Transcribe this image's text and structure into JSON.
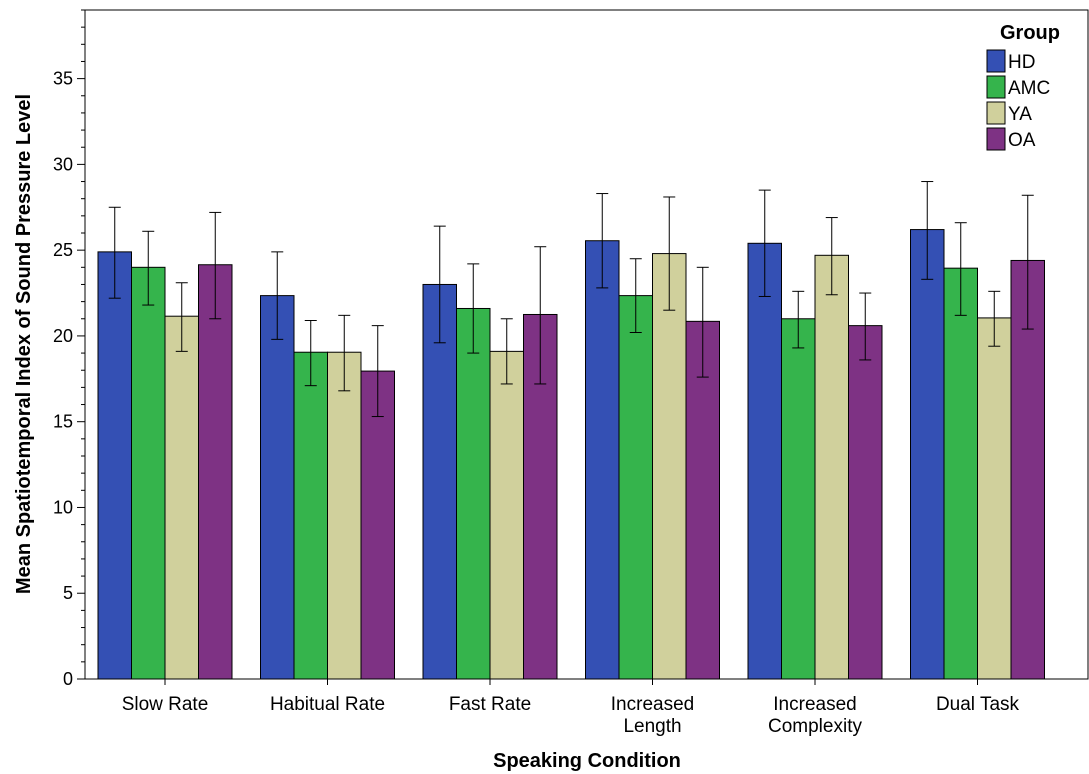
{
  "chart_data": {
    "type": "bar",
    "xlabel": "Speaking Condition",
    "ylabel": "Mean Spatiotemporal Index of Sound Pressure Level",
    "ylim": [
      0,
      39
    ],
    "yticks": [
      0,
      5,
      10,
      15,
      20,
      25,
      30,
      35
    ],
    "categories": [
      [
        "Slow Rate"
      ],
      [
        "Habitual Rate"
      ],
      [
        "Fast Rate"
      ],
      [
        "Increased",
        "Length"
      ],
      [
        "Increased",
        "Complexity"
      ],
      [
        "Dual Task"
      ]
    ],
    "legend": {
      "title": "Group",
      "position": "top-right"
    },
    "series": [
      {
        "name": "HD",
        "color": "#3450B4",
        "values": [
          24.9,
          22.35,
          23.0,
          25.55,
          25.4,
          26.2
        ],
        "err_low": [
          22.2,
          19.8,
          19.6,
          22.8,
          22.3,
          23.3
        ],
        "err_high": [
          27.5,
          24.9,
          26.4,
          28.3,
          28.5,
          29.0
        ]
      },
      {
        "name": "AMC",
        "color": "#35B44C",
        "values": [
          24.0,
          19.05,
          21.6,
          22.35,
          21.0,
          23.95
        ],
        "err_low": [
          21.8,
          17.1,
          19.0,
          20.2,
          19.3,
          21.2
        ],
        "err_high": [
          26.1,
          20.9,
          24.2,
          24.5,
          22.6,
          26.6
        ]
      },
      {
        "name": "YA",
        "color": "#D0D09C",
        "values": [
          21.15,
          19.05,
          19.1,
          24.8,
          24.7,
          21.05
        ],
        "err_low": [
          19.1,
          16.8,
          17.2,
          21.5,
          22.4,
          19.4
        ],
        "err_high": [
          23.1,
          21.2,
          21.0,
          28.1,
          26.9,
          22.6
        ]
      },
      {
        "name": "OA",
        "color": "#7E3284",
        "values": [
          24.15,
          17.95,
          21.25,
          20.85,
          20.6,
          24.4
        ],
        "err_low": [
          21.0,
          15.3,
          17.2,
          17.6,
          18.6,
          20.4
        ],
        "err_high": [
          27.2,
          20.6,
          25.2,
          24.0,
          22.5,
          28.2
        ]
      }
    ]
  }
}
